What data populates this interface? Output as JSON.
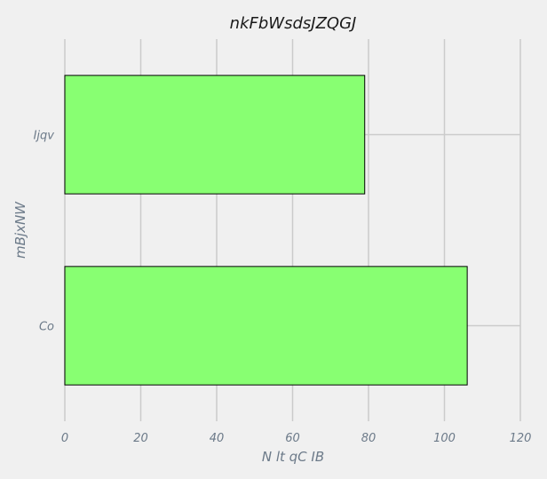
{
  "chart_data": {
    "type": "bar",
    "orientation": "horizontal",
    "title": "nkFbWsdsJZQGJ",
    "xlabel": "N lt qC IB",
    "ylabel": "mBjxNW",
    "categories": [
      "Co",
      "Ijqv"
    ],
    "values": [
      106,
      79
    ],
    "xlim": [
      0,
      120
    ],
    "xticks": [
      0,
      20,
      40,
      60,
      80,
      100,
      120
    ],
    "grid": true,
    "bar_color": "#88ff72",
    "background_color": "#f0f0f0"
  }
}
